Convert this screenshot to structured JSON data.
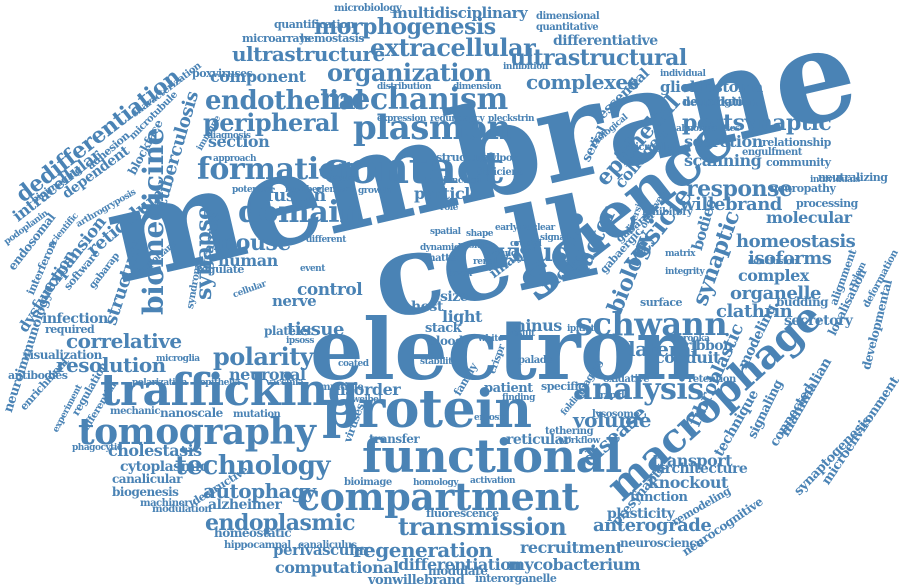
{
  "colors": {
    "word": "#4a83b5",
    "background": "#ffffff"
  },
  "words": [
    "membrane",
    "cell",
    "electron",
    "science",
    "protein",
    "functional",
    "trafficking",
    "compartment",
    "contact",
    "plasmon",
    "mechanism",
    "tomography",
    "domain",
    "formation",
    "macrophage",
    "schwann",
    "analysis",
    "technology",
    "biomedicine",
    "organization",
    "extracellular",
    "ultrastructural",
    "morphogenesis",
    "transmission",
    "endoplasmic",
    "regeneration",
    "vesicle",
    "factor",
    "virus",
    "endothelial",
    "peripheral",
    "polarity",
    "synapse",
    "postsynaptic",
    "epithelial",
    "biology",
    "response",
    "complexes",
    "ultrastructure",
    "quantification",
    "multidisciplinary",
    "microbiology",
    "dimensional",
    "quantitative",
    "differentiative",
    "microarrays",
    "hemostasis",
    "characterization",
    "microtubule",
    "poxviruses",
    "glioblastoma",
    "neuroligin",
    "delipidation",
    "individual",
    "inhibition",
    "dedifferentiation",
    "bioimaging",
    "adhesion",
    "dependent",
    "blockface",
    "tuberculosis",
    "intracellular",
    "reticulum",
    "expansion",
    "structure",
    "endosomal",
    "podoplanin",
    "interferon",
    "software",
    "gabarap",
    "dysfunction",
    "neuroimmunology",
    "antibodies",
    "enrichment",
    "infection",
    "required",
    "visualization",
    "correlative",
    "resolution",
    "mouse",
    "human",
    "fusion",
    "granule",
    "section",
    "component",
    "redundancy",
    "pleckstrin",
    "expression",
    "distribution",
    "dimension",
    "collagen",
    "secretion",
    "scanning",
    "willebrand",
    "homeostasis",
    "isoforms",
    "complex",
    "organelle",
    "clathrin",
    "budding",
    "secretory",
    "ribbon",
    "conduit",
    "lateral",
    "disease",
    "volume",
    "transport",
    "knockout",
    "function",
    "plasticity",
    "neuroscience",
    "anterograde",
    "recruitment",
    "mycobacterium",
    "differentiation",
    "computational",
    "vonwillebrand",
    "interorganelle",
    "neuropathy",
    "processing",
    "molecular",
    "relationship",
    "community",
    "neutralizing",
    "synaptic",
    "bodies",
    "gabaergic",
    "gabarapl",
    "modeling",
    "fibroblastic",
    "signaling",
    "technique",
    "connected",
    "mammalian",
    "localisation",
    "alignment",
    "deformation",
    "xylem",
    "developmental",
    "synaptogenesis",
    "microenvironment",
    "neurocognitive",
    "presynaptic",
    "architecture",
    "remodeling",
    "lysosome",
    "retention",
    "oxidative",
    "imaging",
    "tethering",
    "workflow",
    "folding",
    "particle",
    "structural",
    "tissue",
    "control",
    "platelet",
    "nerve",
    "size",
    "light",
    "model",
    "image",
    "minus",
    "host",
    "stack",
    "blood",
    "white",
    "result",
    "disorder",
    "neuronal",
    "cytoplasmic",
    "cholestasis",
    "autophagy",
    "alzheimer",
    "canalicular",
    "biogenesis",
    "machinery",
    "modulation",
    "destructive",
    "homeostatic",
    "hippocampal",
    "perivascular",
    "canaliculus",
    "modulate",
    "transfer",
    "reticular",
    "fluorescence",
    "activation",
    "homology",
    "bioimage",
    "viruses",
    "patient",
    "specific",
    "multiple",
    "mechanic",
    "nanoscale",
    "mutation",
    "vaccinia",
    "polarization",
    "epithelia",
    "microglia",
    "phagocytic",
    "regulate",
    "cellular",
    "syndrome",
    "potential",
    "approach",
    "immune",
    "diagnosis",
    "experiment",
    "regulation",
    "differential",
    "neuro",
    "matter",
    "entosis",
    "fowlpox",
    "deficient",
    "microglial",
    "inhibitory",
    "matrix",
    "integrity",
    "engulfment",
    "abnormalities",
    "individuals",
    "biological",
    "essential",
    "serial",
    "arthrogryposis",
    "scientific",
    "important",
    "conclusion",
    "diversity",
    "observed",
    "barooka",
    "ipitiate",
    "palade",
    "crispr",
    "stability",
    "coated",
    "ipsoss",
    "weibel",
    "family",
    "finding",
    "junction",
    "growth",
    "crucial",
    "signal",
    "event",
    "renal",
    "role",
    "wound",
    "basal",
    "spatial",
    "rapid",
    "surface",
    "different",
    "element",
    "number",
    "position",
    "dynamic",
    "early",
    "shape",
    "nuclear",
    "heavy"
  ]
}
